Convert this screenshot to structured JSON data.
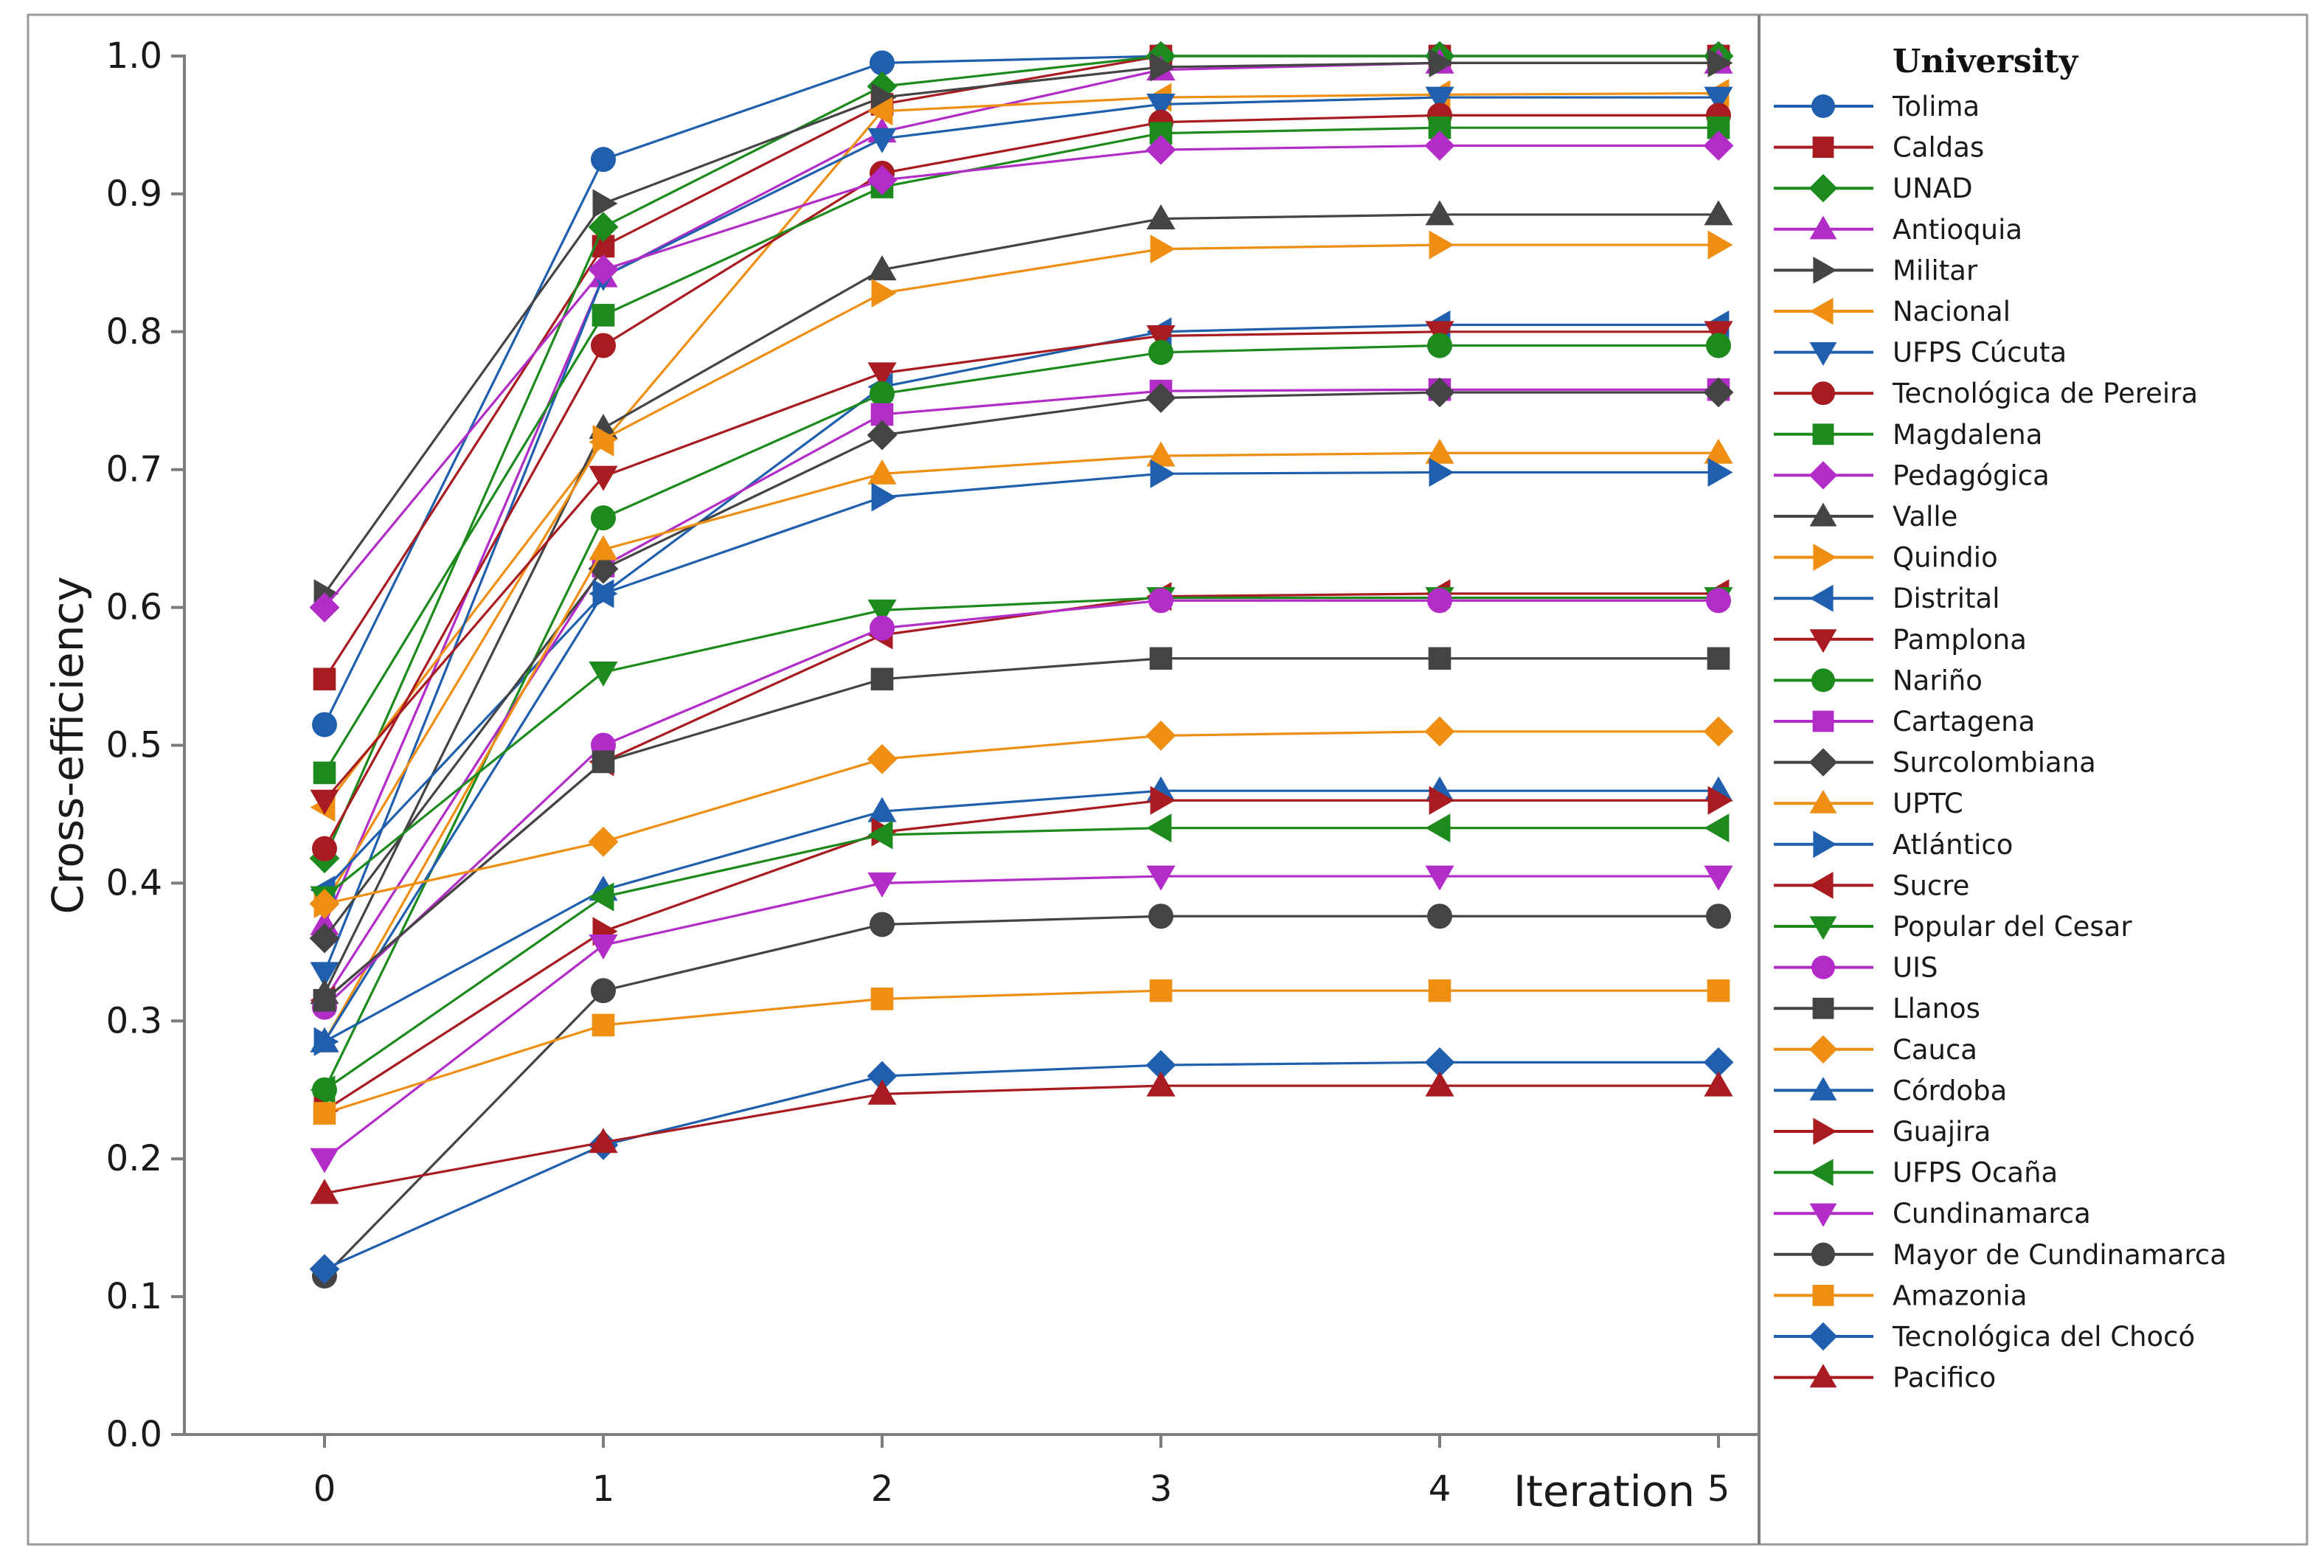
{
  "chart_data": {
    "type": "line",
    "title": "",
    "xlabel": "Iteration",
    "ylabel": "Cross-efficiency",
    "x": [
      0,
      1,
      2,
      3,
      4,
      5
    ],
    "x_tick_labels": [
      "0",
      "1",
      "2",
      "3",
      "4",
      "5"
    ],
    "y_tick_labels": [
      "0.0",
      "0.1",
      "0.2",
      "0.3",
      "0.4",
      "0.5",
      "0.6",
      "0.7",
      "0.8",
      "0.9",
      "1.0"
    ],
    "ylim": [
      0,
      1.0
    ],
    "grid": false,
    "legend_title": "University",
    "legend_position": "right",
    "series": [
      {
        "name": "Tolima",
        "color": "#1f5fae",
        "marker": "circle",
        "values": [
          0.515,
          0.925,
          0.995,
          1.0,
          1.0,
          1.0
        ]
      },
      {
        "name": "Caldas",
        "color": "#a81b20",
        "marker": "square",
        "values": [
          0.548,
          0.862,
          0.965,
          1.0,
          1.0,
          1.0
        ]
      },
      {
        "name": "UNAD",
        "color": "#1c8a1c",
        "marker": "diamond",
        "values": [
          0.418,
          0.876,
          0.978,
          1.0,
          1.0,
          1.0
        ]
      },
      {
        "name": "Antioquia",
        "color": "#b22cc8",
        "marker": "triangle-up",
        "values": [
          0.37,
          0.84,
          0.945,
          0.99,
          0.995,
          0.995
        ]
      },
      {
        "name": "Militar",
        "color": "#444444",
        "marker": "triangle-right",
        "values": [
          0.61,
          0.893,
          0.97,
          0.992,
          0.995,
          0.995
        ]
      },
      {
        "name": "Nacional",
        "color": "#ee8e12",
        "marker": "triangle-left",
        "values": [
          0.455,
          0.72,
          0.96,
          0.97,
          0.972,
          0.973
        ]
      },
      {
        "name": "UFPS Cúcuta",
        "color": "#1f5fae",
        "marker": "triangle-down",
        "values": [
          0.335,
          0.84,
          0.94,
          0.965,
          0.97,
          0.97
        ]
      },
      {
        "name": "Tecnológica de Pereira",
        "color": "#a81b20",
        "marker": "circle",
        "values": [
          0.425,
          0.79,
          0.915,
          0.952,
          0.957,
          0.957
        ]
      },
      {
        "name": "Magdalena",
        "color": "#1c8a1c",
        "marker": "square",
        "values": [
          0.48,
          0.812,
          0.905,
          0.944,
          0.948,
          0.948
        ]
      },
      {
        "name": "Pedagógica",
        "color": "#b22cc8",
        "marker": "diamond",
        "values": [
          0.6,
          0.845,
          0.91,
          0.932,
          0.935,
          0.935
        ]
      },
      {
        "name": "Valle",
        "color": "#444444",
        "marker": "triangle-up",
        "values": [
          0.32,
          0.73,
          0.845,
          0.882,
          0.885,
          0.885
        ]
      },
      {
        "name": "Quindio",
        "color": "#ee8e12",
        "marker": "triangle-right",
        "values": [
          0.385,
          0.722,
          0.828,
          0.86,
          0.863,
          0.863
        ]
      },
      {
        "name": "Distrital",
        "color": "#1f5fae",
        "marker": "triangle-left",
        "values": [
          0.395,
          0.61,
          0.76,
          0.8,
          0.805,
          0.805
        ]
      },
      {
        "name": "Pamplona",
        "color": "#a81b20",
        "marker": "triangle-down",
        "values": [
          0.46,
          0.695,
          0.77,
          0.797,
          0.8,
          0.8
        ]
      },
      {
        "name": "Nariño",
        "color": "#1c8a1c",
        "marker": "circle",
        "values": [
          0.25,
          0.665,
          0.755,
          0.785,
          0.79,
          0.79
        ]
      },
      {
        "name": "Cartagena",
        "color": "#b22cc8",
        "marker": "square",
        "values": [
          0.315,
          0.63,
          0.74,
          0.757,
          0.758,
          0.758
        ]
      },
      {
        "name": "Surcolombiana",
        "color": "#444444",
        "marker": "diamond",
        "values": [
          0.36,
          0.628,
          0.725,
          0.752,
          0.756,
          0.756
        ]
      },
      {
        "name": "UPTC",
        "color": "#ee8e12",
        "marker": "triangle-up",
        "values": [
          0.285,
          0.642,
          0.697,
          0.71,
          0.712,
          0.712
        ]
      },
      {
        "name": "Atlántico",
        "color": "#1f5fae",
        "marker": "triangle-right",
        "values": [
          0.285,
          0.61,
          0.68,
          0.697,
          0.698,
          0.698
        ]
      },
      {
        "name": "Sucre",
        "color": "#a81b20",
        "marker": "triangle-left",
        "values": [
          0.315,
          0.488,
          0.58,
          0.608,
          0.61,
          0.61
        ]
      },
      {
        "name": "Popular del Cesar",
        "color": "#1c8a1c",
        "marker": "triangle-down",
        "values": [
          0.39,
          0.553,
          0.598,
          0.607,
          0.607,
          0.607
        ]
      },
      {
        "name": "UIS",
        "color": "#b22cc8",
        "marker": "circle",
        "values": [
          0.31,
          0.5,
          0.585,
          0.605,
          0.605,
          0.605
        ]
      },
      {
        "name": "Llanos",
        "color": "#444444",
        "marker": "square",
        "values": [
          0.315,
          0.488,
          0.548,
          0.563,
          0.563,
          0.563
        ]
      },
      {
        "name": "Cauca",
        "color": "#ee8e12",
        "marker": "diamond",
        "values": [
          0.385,
          0.43,
          0.49,
          0.507,
          0.51,
          0.51
        ]
      },
      {
        "name": "Córdoba",
        "color": "#1f5fae",
        "marker": "triangle-up",
        "values": [
          0.285,
          0.395,
          0.452,
          0.467,
          0.467,
          0.467
        ]
      },
      {
        "name": "Guajira",
        "color": "#a81b20",
        "marker": "triangle-right",
        "values": [
          0.235,
          0.365,
          0.437,
          0.46,
          0.46,
          0.46
        ]
      },
      {
        "name": "UFPS Ocaña",
        "color": "#1c8a1c",
        "marker": "triangle-left",
        "values": [
          0.25,
          0.39,
          0.435,
          0.44,
          0.44,
          0.44
        ]
      },
      {
        "name": "Cundinamarca",
        "color": "#b22cc8",
        "marker": "triangle-down",
        "values": [
          0.2,
          0.355,
          0.4,
          0.405,
          0.405,
          0.405
        ]
      },
      {
        "name": "Mayor de Cundinamarca",
        "color": "#444444",
        "marker": "circle",
        "values": [
          0.115,
          0.322,
          0.37,
          0.376,
          0.376,
          0.376
        ]
      },
      {
        "name": "Amazonia",
        "color": "#ee8e12",
        "marker": "square",
        "values": [
          0.233,
          0.297,
          0.316,
          0.322,
          0.322,
          0.322
        ]
      },
      {
        "name": "Tecnológica del Chocó",
        "color": "#1f5fae",
        "marker": "diamond",
        "values": [
          0.12,
          0.21,
          0.26,
          0.268,
          0.27,
          0.27
        ]
      },
      {
        "name": "Pacifico",
        "color": "#a81b20",
        "marker": "triangle-up",
        "values": [
          0.175,
          0.212,
          0.247,
          0.253,
          0.253,
          0.253
        ]
      }
    ]
  }
}
